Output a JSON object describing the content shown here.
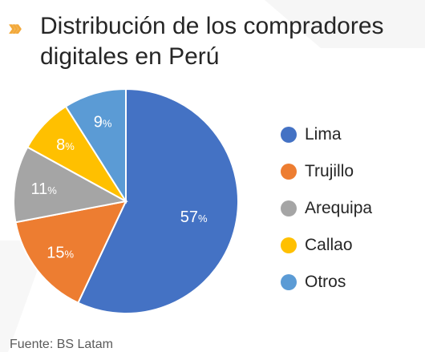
{
  "title": "Distribución de los compradores digitales en Perú",
  "source": "Fuente: BS Latam",
  "colors": {
    "accent": "#f2a93b"
  },
  "chart_data": {
    "type": "pie",
    "title": "Distribución de los compradores digitales en Perú",
    "unit": "%",
    "slices": [
      {
        "label": "Lima",
        "value": 57,
        "color": "#4472c4"
      },
      {
        "label": "Trujillo",
        "value": 15,
        "color": "#ed7d31"
      },
      {
        "label": "Arequipa",
        "value": 11,
        "color": "#a5a5a5"
      },
      {
        "label": "Callao",
        "value": 8,
        "color": "#ffc000"
      },
      {
        "label": "Otros",
        "value": 9,
        "color": "#5b9bd5"
      }
    ],
    "legend_position": "right"
  }
}
